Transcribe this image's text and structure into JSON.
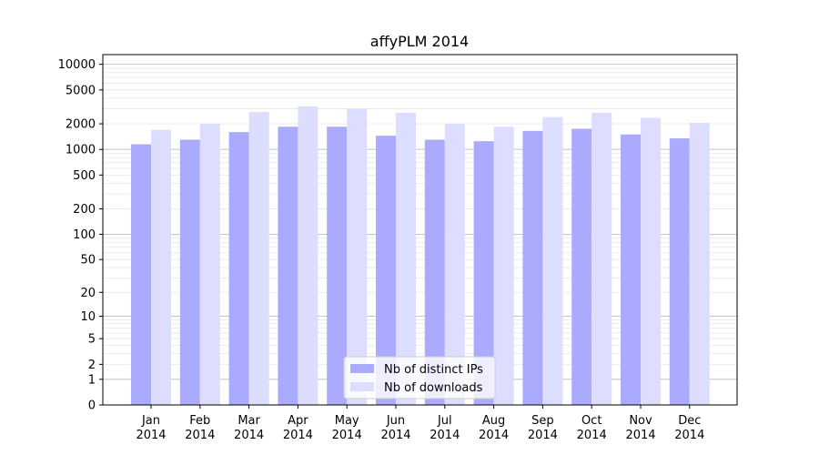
{
  "chart_data": {
    "type": "bar",
    "title": "affyPLM 2014",
    "xlabel": "",
    "ylabel": "",
    "y_scale": "symlog",
    "ylim": [
      0,
      13000
    ],
    "y_ticks": [
      0,
      1,
      2,
      5,
      10,
      20,
      50,
      100,
      200,
      500,
      1000,
      2000,
      5000,
      10000
    ],
    "grid": true,
    "legend_position": "bottom-center",
    "categories": [
      "Jan\n2014",
      "Feb\n2014",
      "Mar\n2014",
      "Apr\n2014",
      "May\n2014",
      "Jun\n2014",
      "Jul\n2014",
      "Aug\n2014",
      "Sep\n2014",
      "Oct\n2014",
      "Nov\n2014",
      "Dec\n2014"
    ],
    "series": [
      {
        "name": "Nb of distinct IPs",
        "color": "#aaaaff",
        "values": [
          1150,
          1300,
          1600,
          1850,
          1850,
          1450,
          1300,
          1250,
          1650,
          1750,
          1500,
          1350
        ]
      },
      {
        "name": "Nb of downloads",
        "color": "#ddddff",
        "values": [
          1700,
          2000,
          2750,
          3200,
          3000,
          2700,
          2000,
          1850,
          2400,
          2700,
          2350,
          2050
        ]
      }
    ]
  }
}
